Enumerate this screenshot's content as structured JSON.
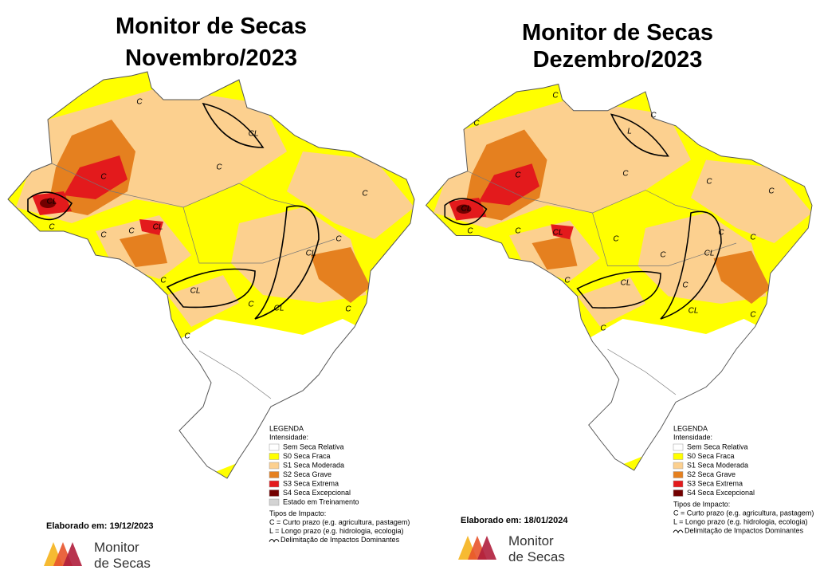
{
  "panels": [
    {
      "title": [
        "Monitor de Secas",
        "Novembro/2023"
      ],
      "map_labels": [
        "C",
        "CL",
        "C",
        "C",
        "C",
        "CL",
        "C",
        "C",
        "C",
        "CL",
        "C",
        "CL",
        "C",
        "CL",
        "C",
        "CL",
        "C",
        "C"
      ],
      "legend": {
        "title": "LEGENDA",
        "subtitle": "Intensidade:",
        "items": [
          {
            "label": "Sem Seca Relativa",
            "color": "#ffffff"
          },
          {
            "label": "S0 Seca Fraca",
            "color": "#ffff00"
          },
          {
            "label": "S1 Seca Moderada",
            "color": "#fcd08f"
          },
          {
            "label": "S2 Seca Grave",
            "color": "#e5801f"
          },
          {
            "label": "S3 Seca Extrema",
            "color": "#e31a1c"
          },
          {
            "label": "S4 Seca Excepcional",
            "color": "#730000"
          },
          {
            "label": "Estado em Treinamento",
            "color": "#d3d3d3"
          }
        ],
        "impact_title": "Tipos de Impacto:",
        "impact_items": [
          "C = Curto prazo (e.g. agricultura, pastagem)",
          "L = Longo prazo (e.g. hidrologia, ecologia)",
          "Delimitação de Impactos Dominantes"
        ]
      },
      "elaborated": "Elaborado em: 19/12/2023",
      "logo": [
        "Monitor",
        "de Secas"
      ]
    },
    {
      "title": [
        "Monitor de Secas",
        "Dezembro/2023"
      ],
      "map_labels": [
        "C",
        "C",
        "L",
        "C",
        "C",
        "C",
        "C",
        "C",
        "CL",
        "C",
        "C",
        "CL",
        "C",
        "C",
        "C",
        "CL",
        "C",
        "C",
        "CL",
        "C",
        "C",
        "CL",
        "C"
      ],
      "legend": {
        "title": "LEGENDA",
        "subtitle": "Intensidade:",
        "items": [
          {
            "label": "Sem Seca Relativa",
            "color": "#ffffff"
          },
          {
            "label": "S0 Seca Fraca",
            "color": "#ffff00"
          },
          {
            "label": "S1 Seca Moderada",
            "color": "#fcd08f"
          },
          {
            "label": "S2 Seca Grave",
            "color": "#e5801f"
          },
          {
            "label": "S3 Seca Extrema",
            "color": "#e31a1c"
          },
          {
            "label": "S4 Seca Excepcional",
            "color": "#730000"
          }
        ],
        "impact_title": "Tipos de Impacto:",
        "impact_items": [
          "C = Curto prazo (e.g. agricultura, pastagem)",
          "L = Longo prazo (e.g. hidrologia, ecologia)",
          "Delimitação de Impactos Dominantes"
        ]
      },
      "elaborated": "Elaborado em: 18/01/2024",
      "logo": [
        "Monitor",
        "de Secas"
      ]
    }
  ]
}
